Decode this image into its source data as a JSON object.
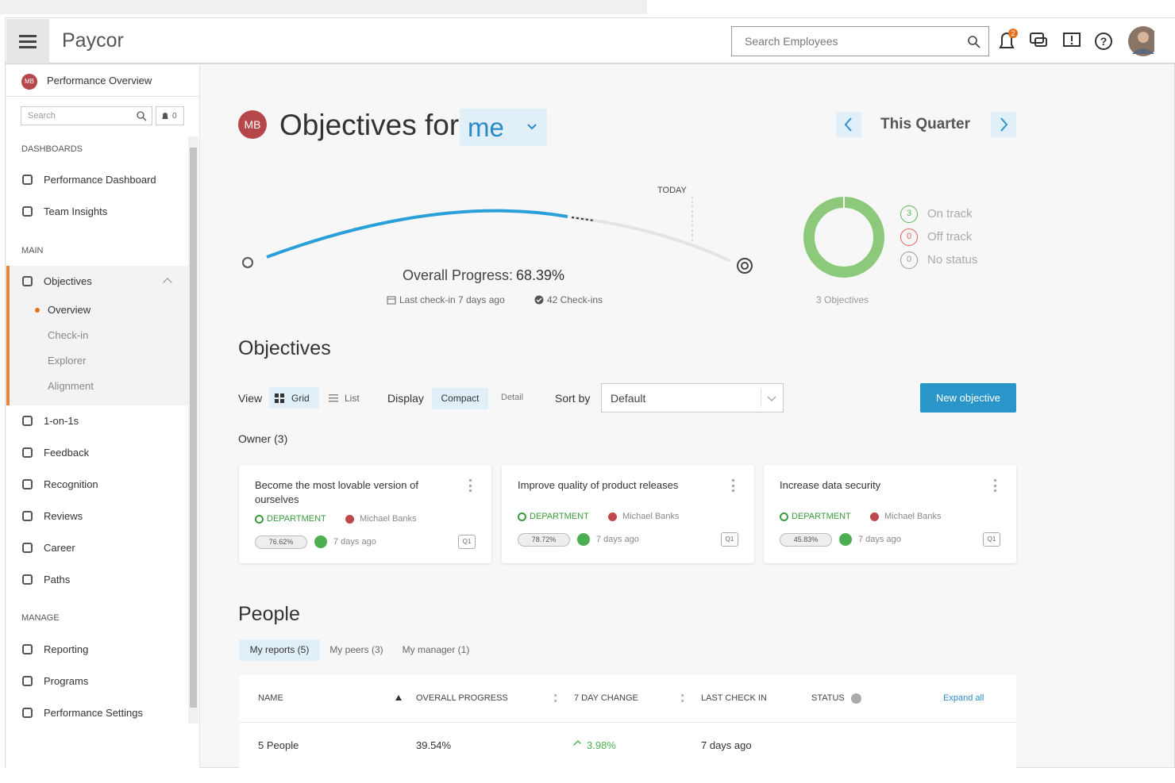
{
  "header": {
    "logo": "Paycor",
    "search_placeholder": "Search Employees",
    "notification_count": "2"
  },
  "sidebar": {
    "initials": "MB",
    "app_title": "Performance Overview",
    "search_placeholder": "Search",
    "alert_count": "0",
    "sections": [
      {
        "label": "DASHBOARDS",
        "items": [
          {
            "label": "Performance Dashboard"
          },
          {
            "label": "Team Insights"
          }
        ]
      },
      {
        "label": "MAIN",
        "items": [
          {
            "label": "Objectives",
            "subitems": [
              "Overview",
              "Check-in",
              "Explorer",
              "Alignment"
            ]
          },
          {
            "label": "1-on-1s"
          },
          {
            "label": "Feedback"
          },
          {
            "label": "Recognition"
          },
          {
            "label": "Reviews"
          },
          {
            "label": "Career"
          },
          {
            "label": "Paths"
          }
        ]
      },
      {
        "label": "MANAGE",
        "items": [
          {
            "label": "Reporting"
          },
          {
            "label": "Programs"
          },
          {
            "label": "Performance Settings"
          }
        ]
      }
    ]
  },
  "page": {
    "initials": "MB",
    "title": "Objectives for",
    "owner": "me",
    "period": "This Quarter"
  },
  "progress": {
    "today": "TODAY",
    "label": "Overall Progress:",
    "value": "68.39%",
    "last_checkin": "Last check-in 7 days ago",
    "checkins": "42 Check-ins"
  },
  "status": {
    "items": [
      {
        "count": "3",
        "label": "On track"
      },
      {
        "count": "0",
        "label": "Off track"
      },
      {
        "count": "0",
        "label": "No status"
      }
    ],
    "total": "3 Objectives"
  },
  "objectives": {
    "heading": "Objectives",
    "view_label": "View",
    "views": [
      "Grid",
      "List"
    ],
    "display_label": "Display",
    "displays": [
      "Compact",
      "Detail"
    ],
    "sort_label": "Sort by",
    "sort_value": "Default",
    "new_button": "New objective",
    "group": "Owner (3)",
    "cards": [
      {
        "title": "Become the most lovable version of ourselves",
        "tag": "DEPARTMENT",
        "owner": "Michael Banks",
        "progress": "76.62%",
        "updated": "7 days ago",
        "period": "Q1"
      },
      {
        "title": "Improve quality of product releases",
        "tag": "DEPARTMENT",
        "owner": "Michael Banks",
        "progress": "78.72%",
        "updated": "7 days ago",
        "period": "Q1"
      },
      {
        "title": "Increase data security",
        "tag": "DEPARTMENT",
        "owner": "Michael Banks",
        "progress": "45.83%",
        "updated": "7 days ago",
        "period": "Q1"
      }
    ]
  },
  "people": {
    "heading": "People",
    "tabs": [
      "My reports (5)",
      "My peers (3)",
      "My manager (1)"
    ],
    "columns": [
      "NAME",
      "OVERALL PROGRESS",
      "7 DAY CHANGE",
      "LAST CHECK IN",
      "STATUS"
    ],
    "expand": "Expand all",
    "rows": [
      [
        "5 People",
        "39.54%",
        "3.98%",
        "7 days ago"
      ]
    ]
  }
}
